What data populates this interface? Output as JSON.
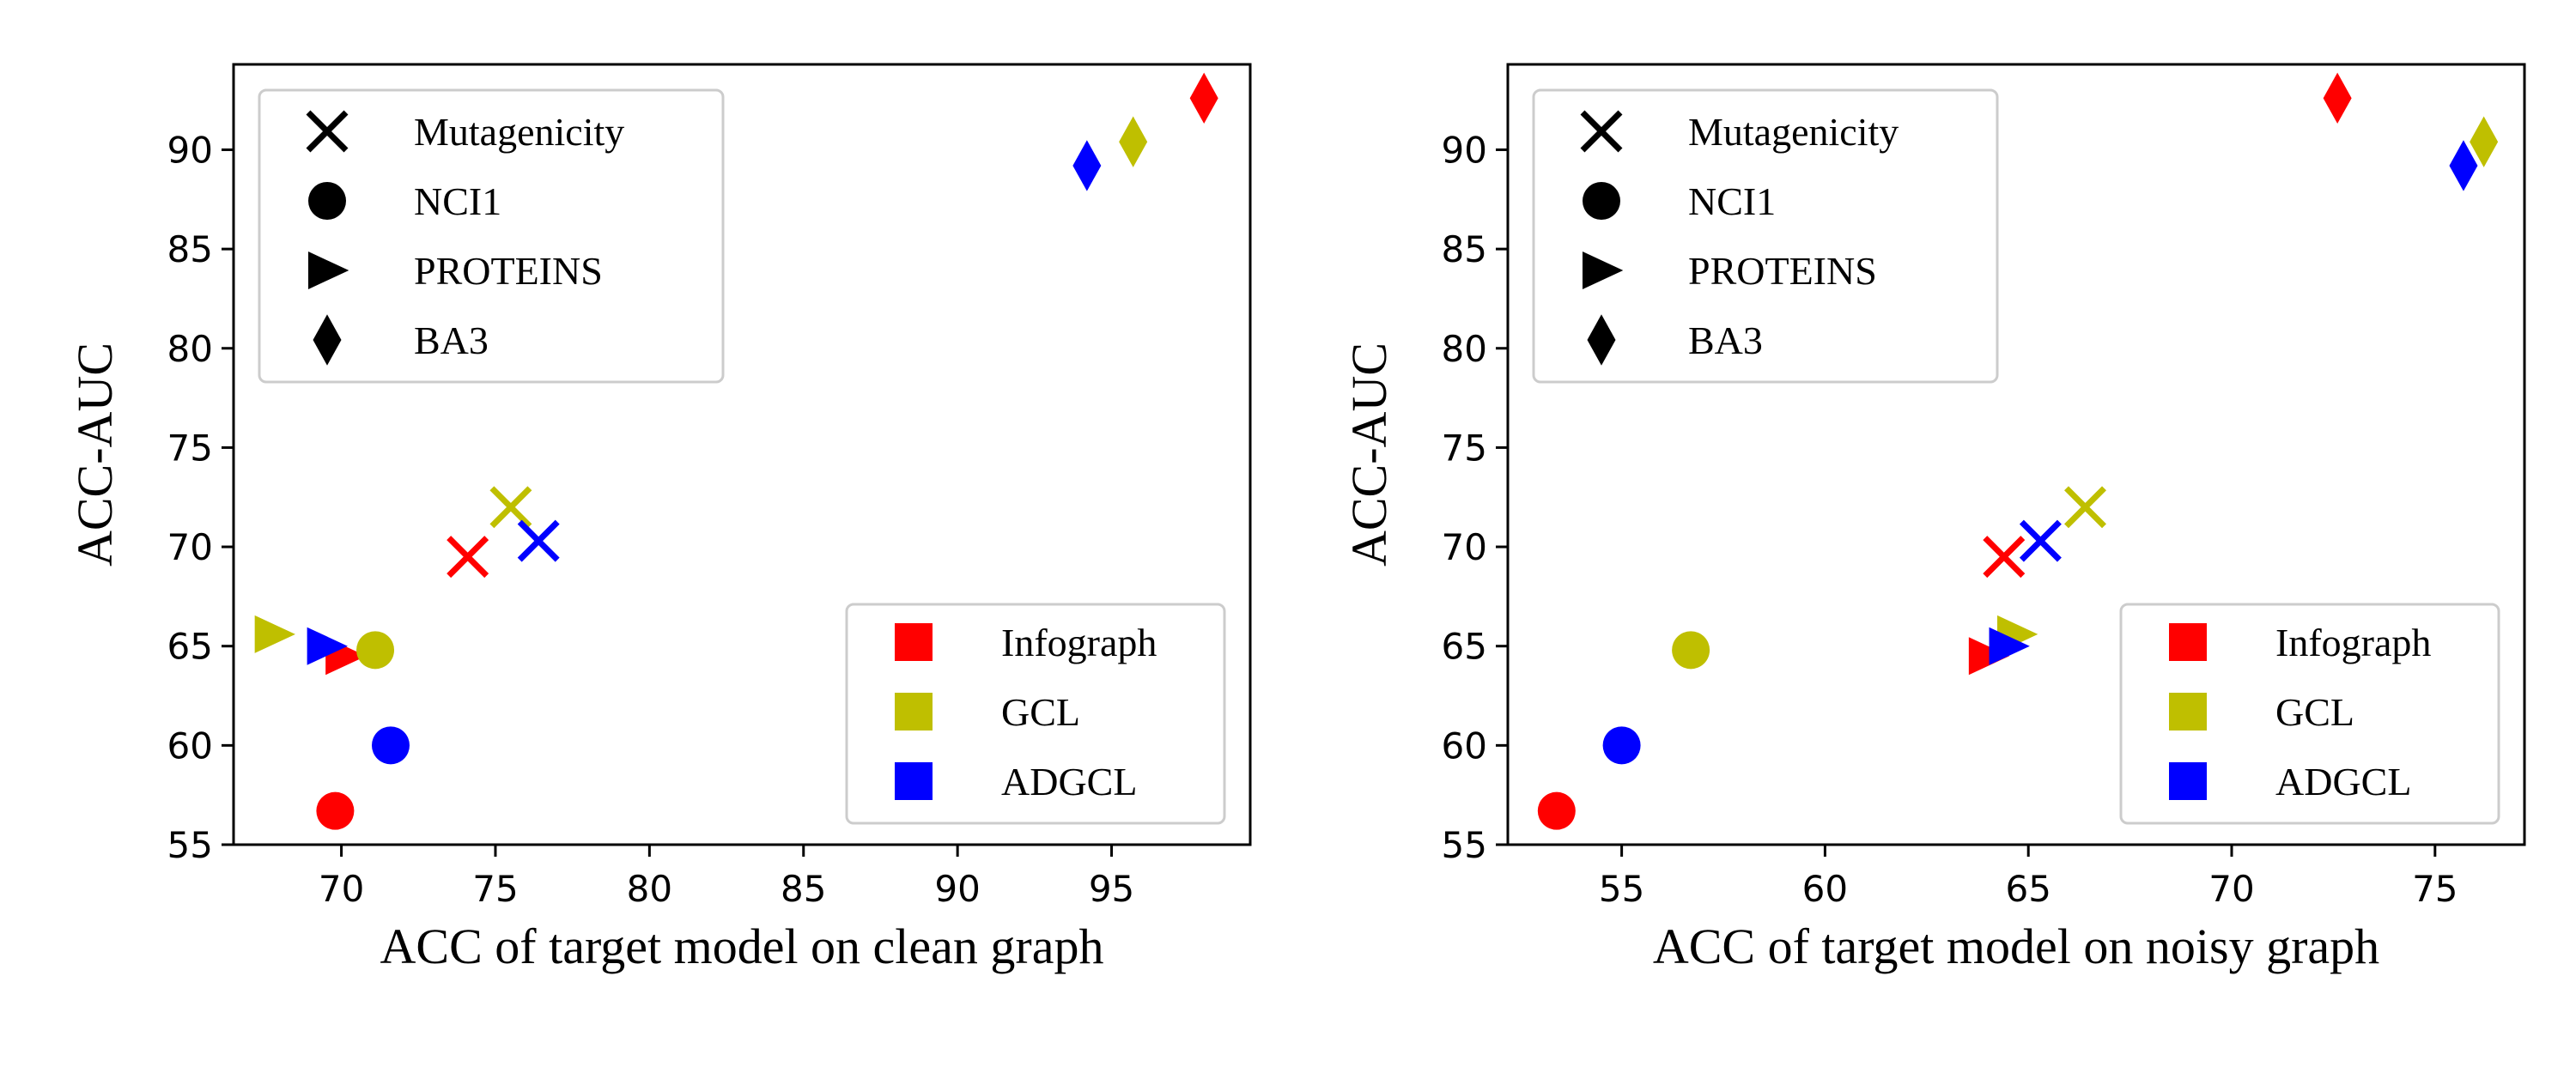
{
  "colors": {
    "Infograph": "#ff0000",
    "GCL": "#bfbf00",
    "ADGCL": "#0000ff"
  },
  "datasets": [
    {
      "name": "Mutagenicity",
      "marker": "x"
    },
    {
      "name": "NCI1",
      "marker": "circle"
    },
    {
      "name": "PROTEINS",
      "marker": "triangle-right"
    },
    {
      "name": "BA3",
      "marker": "diamond"
    }
  ],
  "methods": [
    "Infograph",
    "GCL",
    "ADGCL"
  ],
  "chart_data": [
    {
      "type": "scatter",
      "title": "",
      "xlabel": "ACC of target model on clean graph",
      "ylabel": "ACC-AUC",
      "xlim": [
        66.5,
        99.5
      ],
      "ylim": [
        55,
        94.3
      ],
      "xticks": [
        70,
        75,
        80,
        85,
        90,
        95
      ],
      "yticks": [
        55,
        60,
        65,
        70,
        75,
        80,
        85,
        90
      ],
      "grid": false,
      "legend_datasets_position": "top-left",
      "legend_methods_position": "bottom-right",
      "points": [
        {
          "method": "Infograph",
          "dataset": "Mutagenicity",
          "x": 74.1,
          "y": 69.5
        },
        {
          "method": "Infograph",
          "dataset": "NCI1",
          "x": 69.8,
          "y": 56.7
        },
        {
          "method": "Infograph",
          "dataset": "PROTEINS",
          "x": 70.1,
          "y": 64.5
        },
        {
          "method": "Infograph",
          "dataset": "BA3",
          "x": 98.0,
          "y": 92.6
        },
        {
          "method": "GCL",
          "dataset": "Mutagenicity",
          "x": 75.5,
          "y": 72.0
        },
        {
          "method": "GCL",
          "dataset": "NCI1",
          "x": 71.1,
          "y": 64.8
        },
        {
          "method": "GCL",
          "dataset": "PROTEINS",
          "x": 67.8,
          "y": 65.6
        },
        {
          "method": "GCL",
          "dataset": "BA3",
          "x": 95.7,
          "y": 90.4
        },
        {
          "method": "ADGCL",
          "dataset": "Mutagenicity",
          "x": 76.4,
          "y": 70.3
        },
        {
          "method": "ADGCL",
          "dataset": "NCI1",
          "x": 71.6,
          "y": 60.0
        },
        {
          "method": "ADGCL",
          "dataset": "PROTEINS",
          "x": 69.5,
          "y": 65.0
        },
        {
          "method": "ADGCL",
          "dataset": "BA3",
          "x": 94.2,
          "y": 89.2
        }
      ]
    },
    {
      "type": "scatter",
      "title": "",
      "xlabel": "ACC of target model on noisy graph",
      "ylabel": "ACC-AUC",
      "xlim": [
        52.2,
        77.2
      ],
      "ylim": [
        55,
        94.3
      ],
      "xticks": [
        55,
        60,
        65,
        70,
        75
      ],
      "yticks": [
        55,
        60,
        65,
        70,
        75,
        80,
        85,
        90
      ],
      "grid": false,
      "legend_datasets_position": "top-left",
      "legend_methods_position": "bottom-right",
      "points": [
        {
          "method": "Infograph",
          "dataset": "Mutagenicity",
          "x": 64.4,
          "y": 69.5
        },
        {
          "method": "Infograph",
          "dataset": "NCI1",
          "x": 53.4,
          "y": 56.7
        },
        {
          "method": "Infograph",
          "dataset": "PROTEINS",
          "x": 64.0,
          "y": 64.5
        },
        {
          "method": "Infograph",
          "dataset": "BA3",
          "x": 72.6,
          "y": 92.6
        },
        {
          "method": "GCL",
          "dataset": "Mutagenicity",
          "x": 66.4,
          "y": 72.0
        },
        {
          "method": "GCL",
          "dataset": "NCI1",
          "x": 56.7,
          "y": 64.8
        },
        {
          "method": "GCL",
          "dataset": "PROTEINS",
          "x": 64.7,
          "y": 65.6
        },
        {
          "method": "GCL",
          "dataset": "BA3",
          "x": 76.2,
          "y": 90.4
        },
        {
          "method": "ADGCL",
          "dataset": "Mutagenicity",
          "x": 65.3,
          "y": 70.3
        },
        {
          "method": "ADGCL",
          "dataset": "NCI1",
          "x": 55.0,
          "y": 60.0
        },
        {
          "method": "ADGCL",
          "dataset": "PROTEINS",
          "x": 64.5,
          "y": 65.0
        },
        {
          "method": "ADGCL",
          "dataset": "BA3",
          "x": 75.7,
          "y": 89.2
        }
      ]
    }
  ]
}
